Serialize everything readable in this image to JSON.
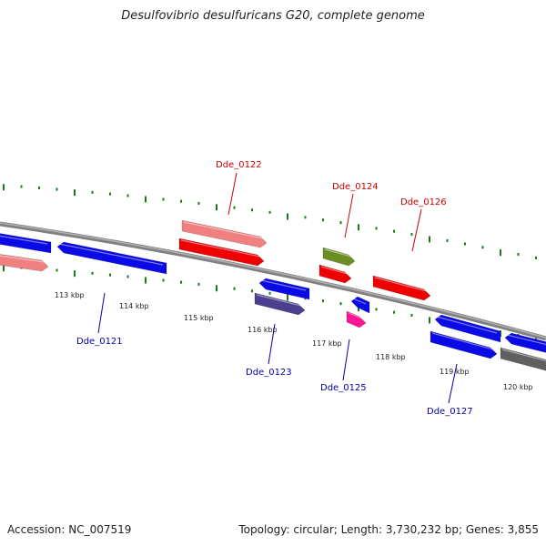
{
  "title": "Desulfovibrio desulfuricans G20, complete genome",
  "footer": {
    "accession": "Accession: NC_007519",
    "topology": "Topology: circular; Length: 3,730,232 bp; Genes: 3,855"
  },
  "colors": {
    "forward_label": "#cc0000",
    "reverse_label": "#0000aa",
    "backbone": "#808080",
    "tick": "#1a7a1a"
  },
  "kbp_labels": [
    "113 kbp",
    "114 kbp",
    "115 kbp",
    "116 kbp",
    "117 kbp",
    "118 kbp",
    "119 kbp",
    "120 kbp"
  ],
  "gene_labels": [
    {
      "id": "Dde_0121",
      "strand": "reverse"
    },
    {
      "id": "Dde_0122",
      "strand": "forward"
    },
    {
      "id": "Dde_0123",
      "strand": "reverse"
    },
    {
      "id": "Dde_0124",
      "strand": "forward"
    },
    {
      "id": "Dde_0125",
      "strand": "reverse"
    },
    {
      "id": "Dde_0126",
      "strand": "forward"
    },
    {
      "id": "Dde_0127",
      "strand": "reverse"
    }
  ],
  "feature_colors": {
    "blue": "#0a0ae6",
    "pink": "#f08080",
    "red": "#ee0000",
    "olive": "#6b8e23",
    "purple": "#4b3f8f",
    "magenta": "#ff1493",
    "gray": "#606060"
  }
}
